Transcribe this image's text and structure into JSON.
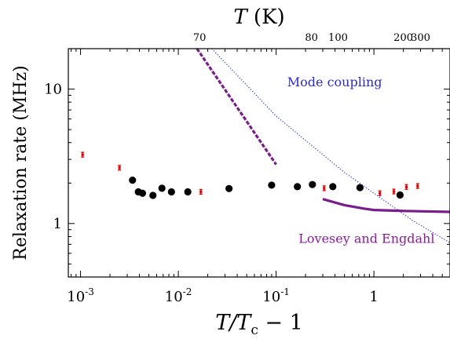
{
  "chart_data": {
    "type": "scatter",
    "x_axis": {
      "label_var": "T/T",
      "label_sub": "c",
      "label_tail": "− 1",
      "scale": "log",
      "range": [
        0.00075,
        6.0
      ],
      "major_ticks": [
        {
          "value": 0.001,
          "mantissa": "10",
          "exp": "-3"
        },
        {
          "value": 0.01,
          "mantissa": "10",
          "exp": "-2"
        },
        {
          "value": 0.1,
          "mantissa": "10",
          "exp": "-1"
        },
        {
          "value": 1,
          "mantissa": "1",
          "exp": ""
        }
      ]
    },
    "y_axis": {
      "label": "Relaxation rate (MHz)",
      "scale": "log",
      "range": [
        0.4,
        20
      ],
      "major_ticks": [
        {
          "value": 1,
          "label": "1"
        },
        {
          "value": 10,
          "label": "10"
        }
      ]
    },
    "top_axis": {
      "label_var": "T",
      "label_unit": "(K)",
      "ticks": [
        {
          "label": "70",
          "x": 0.0165
        },
        {
          "label": "80",
          "x": 0.23
        },
        {
          "label": "100",
          "x": 0.43
        },
        {
          "label": "200",
          "x": 2.0
        },
        {
          "label": "300",
          "x": 3.0
        }
      ]
    },
    "series": [
      {
        "marker": "dot",
        "color": "#000000",
        "points": [
          [
            0.0034,
            2.1
          ],
          [
            0.0039,
            1.72
          ],
          [
            0.0043,
            1.68
          ],
          [
            0.0055,
            1.62
          ],
          [
            0.0068,
            1.83
          ],
          [
            0.0085,
            1.72
          ],
          [
            0.0125,
            1.72
          ],
          [
            0.033,
            1.82
          ],
          [
            0.09,
            1.93
          ],
          [
            0.165,
            1.88
          ],
          [
            0.235,
            1.95
          ],
          [
            0.38,
            1.88
          ],
          [
            0.72,
            1.85
          ],
          [
            1.85,
            1.63
          ]
        ]
      },
      {
        "marker": "errorbar",
        "color": "#e00000",
        "points": [
          [
            0.00105,
            3.25
          ],
          [
            0.0025,
            2.6
          ],
          [
            0.017,
            1.72
          ],
          [
            0.31,
            1.83
          ],
          [
            1.15,
            1.68
          ],
          [
            1.6,
            1.73
          ],
          [
            2.15,
            1.87
          ],
          [
            2.8,
            1.9
          ]
        ]
      }
    ],
    "curves": [
      {
        "name": "Mode coupling",
        "style": "dotted",
        "color": "#2a2ad0",
        "points": [
          [
            0.022,
            20
          ],
          [
            0.1,
            6.3
          ],
          [
            0.5,
            2.4
          ],
          [
            2.5,
            1.05
          ],
          [
            6.0,
            0.72
          ]
        ]
      },
      {
        "name": "",
        "style": "dashed",
        "color": "#7b1c8c",
        "points": [
          [
            0.0155,
            20
          ],
          [
            0.1,
            2.75
          ]
        ]
      },
      {
        "name": "Lovesey and Engdahl",
        "style": "solid",
        "color": "#7b1c8c",
        "points": [
          [
            0.3,
            1.52
          ],
          [
            0.5,
            1.37
          ],
          [
            0.8,
            1.29
          ],
          [
            1.0,
            1.26
          ],
          [
            2.0,
            1.24
          ],
          [
            6.0,
            1.22
          ]
        ]
      }
    ],
    "annotations": [
      {
        "text": "Mode coupling",
        "color": "#2a2ad0",
        "x": 0.13,
        "y": 10.5
      },
      {
        "text": "Lovesey and Engdahl",
        "color": "#8a1a9a",
        "x": 0.17,
        "y": 0.72
      }
    ]
  }
}
